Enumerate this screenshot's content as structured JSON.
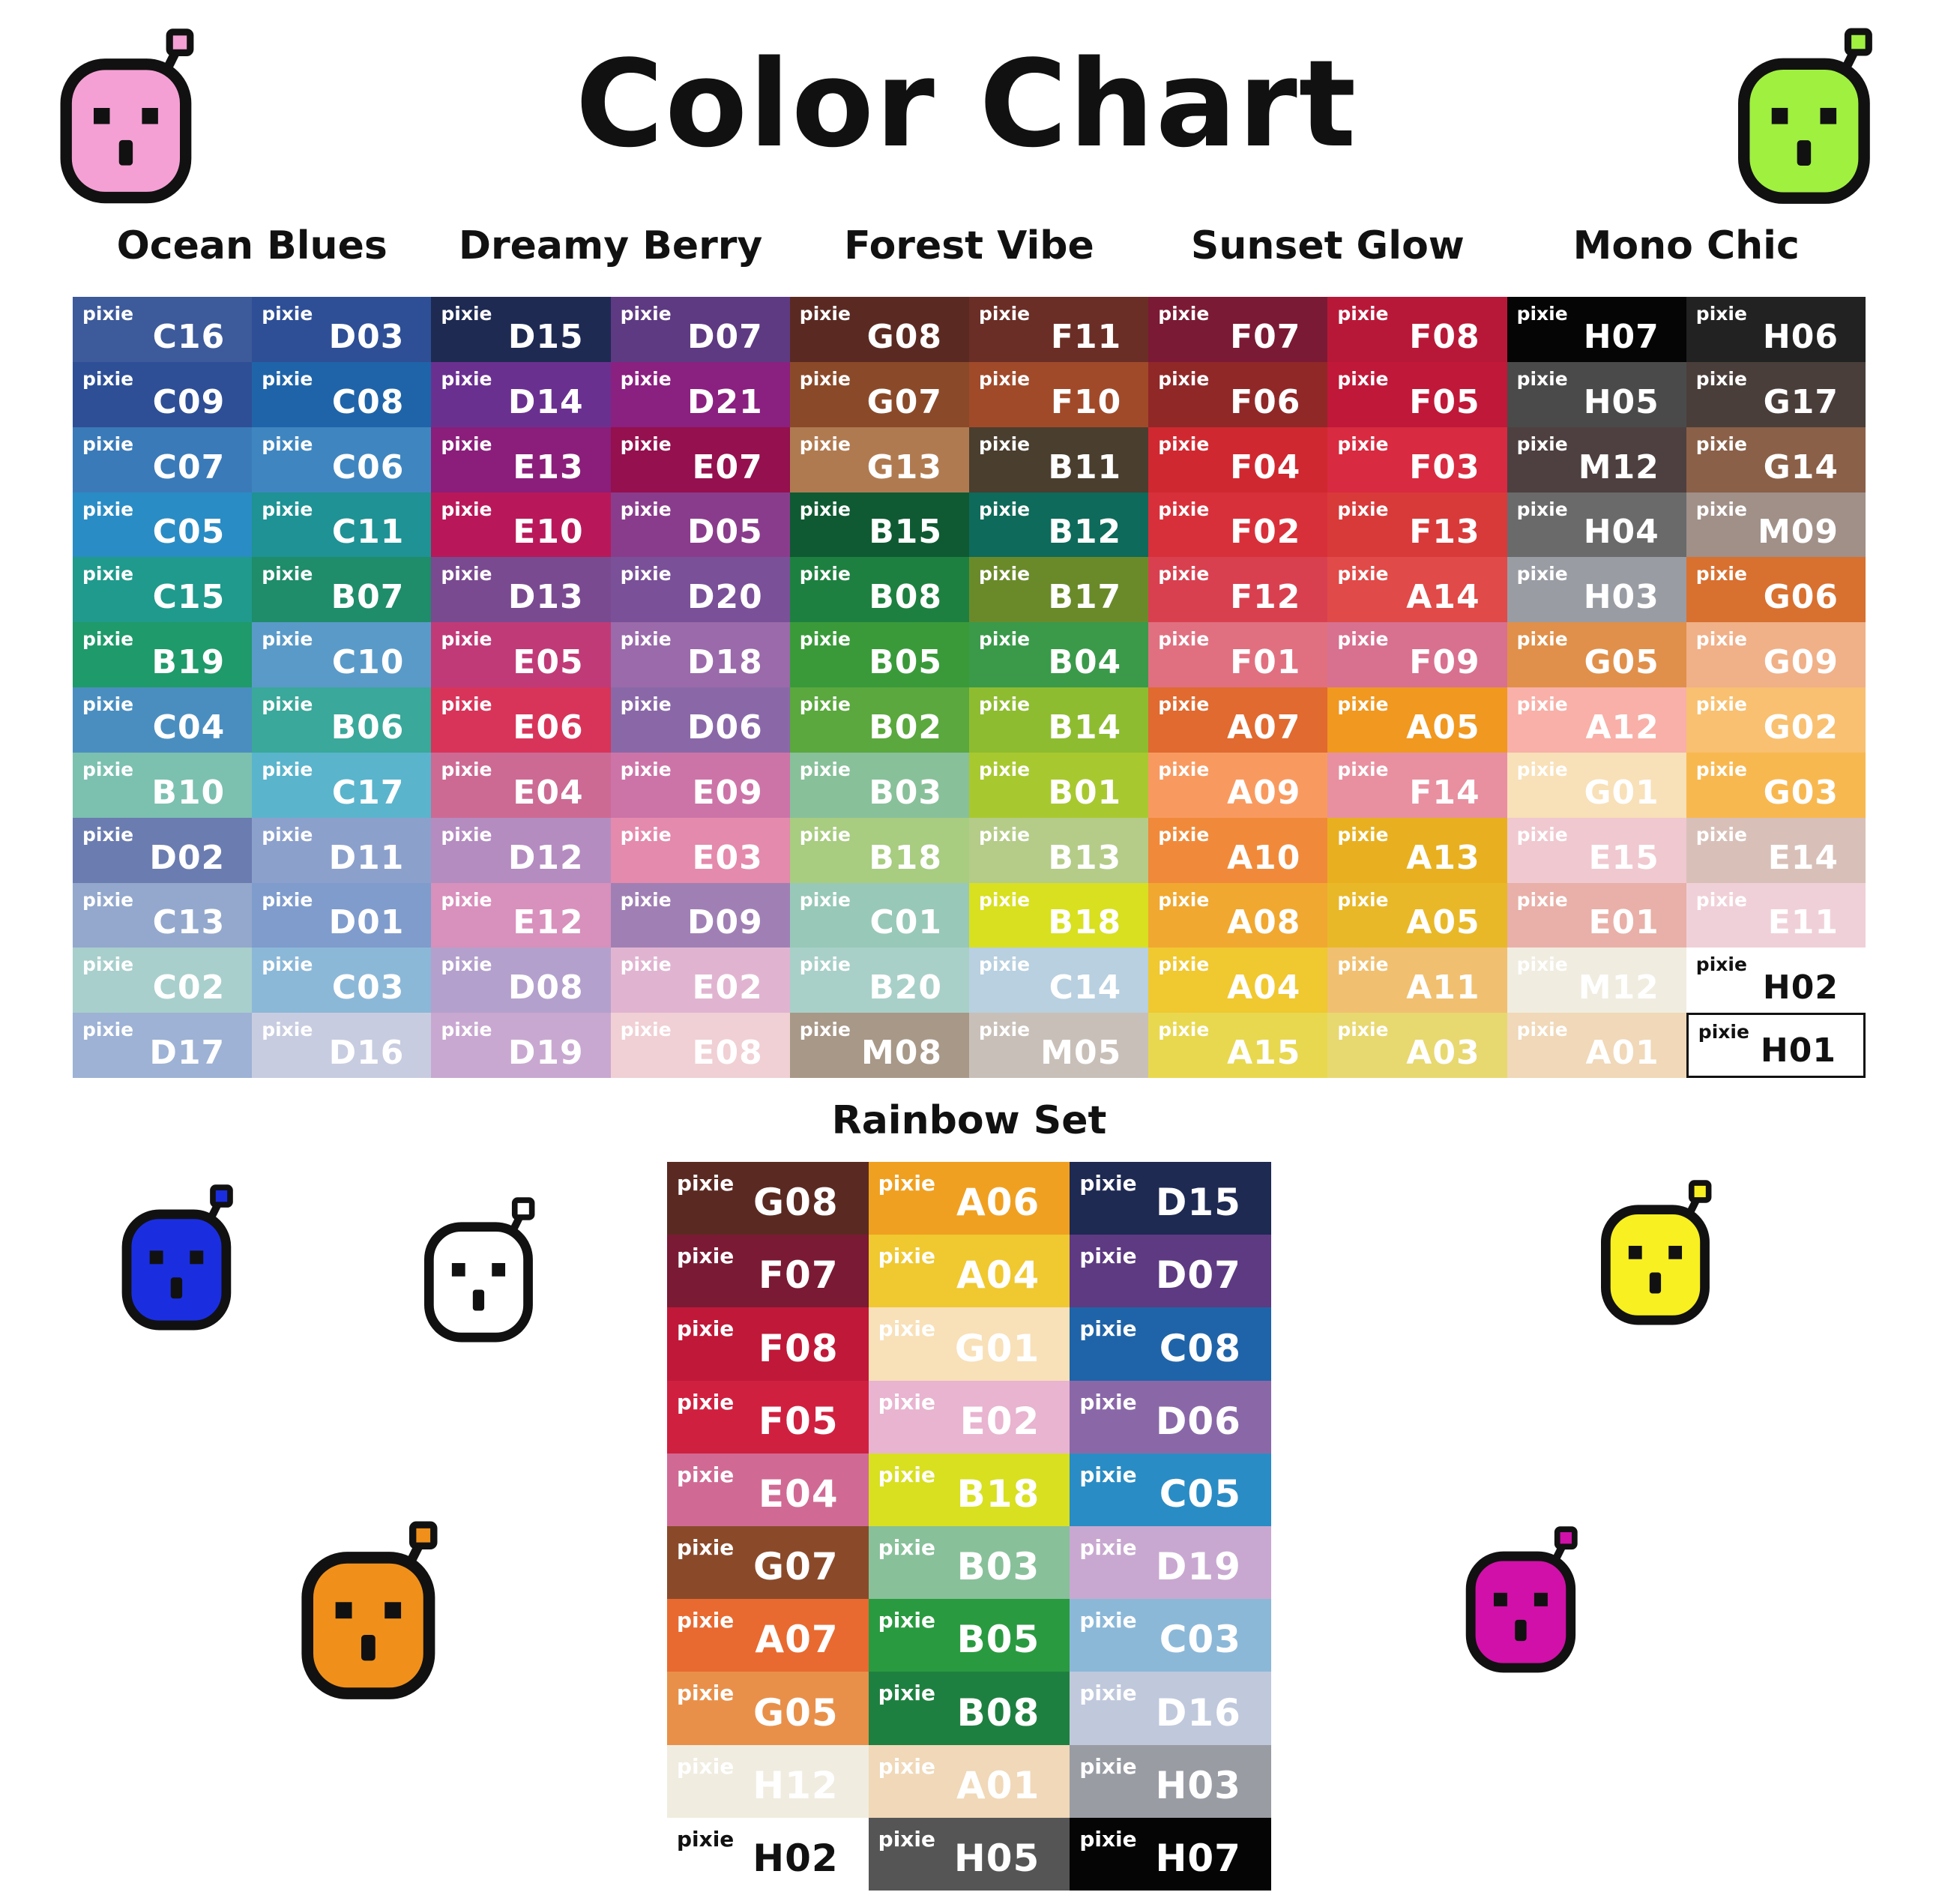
{
  "title": "Color Chart",
  "brand": "pixie",
  "groups": [
    "Ocean Blues",
    "Dreamy Berry",
    "Forest Vibe",
    "Sunset Glow",
    "Mono Chic"
  ],
  "main_columns": [
    [
      [
        "C16",
        "#3d5a9a"
      ],
      [
        "C09",
        "#2e4f96"
      ],
      [
        "C07",
        "#3a7ab8"
      ],
      [
        "C05",
        "#2a8cc4"
      ],
      [
        "C15",
        "#1f9a8c"
      ],
      [
        "B19",
        "#1f9a6a"
      ],
      [
        "C04",
        "#4a8ec0"
      ],
      [
        "B10",
        "#7cc0b0"
      ],
      [
        "D02",
        "#6b7cb0"
      ],
      [
        "C13",
        "#93a8cc"
      ],
      [
        "C02",
        "#a8cfcc"
      ],
      [
        "D17",
        "#9db2d4"
      ]
    ],
    [
      [
        "D03",
        "#2e4f96"
      ],
      [
        "C08",
        "#1f64a8"
      ],
      [
        "C06",
        "#3f86c0"
      ],
      [
        "C11",
        "#1e9294"
      ],
      [
        "B07",
        "#1f8c6a"
      ],
      [
        "C10",
        "#5a9ac8"
      ],
      [
        "B06",
        "#3aa89a"
      ],
      [
        "C17",
        "#5ab4cc"
      ],
      [
        "D11",
        "#8ca0cc"
      ],
      [
        "D01",
        "#7f9ccc"
      ],
      [
        "C03",
        "#8cb8d8"
      ],
      [
        "D16",
        "#c8cce0"
      ]
    ],
    [
      [
        "D15",
        "#1e2a52"
      ],
      [
        "D14",
        "#6a3090"
      ],
      [
        "E13",
        "#8a1e7a"
      ],
      [
        "E10",
        "#b8185a"
      ],
      [
        "D13",
        "#7a4a90"
      ],
      [
        "E05",
        "#c03a78"
      ],
      [
        "E06",
        "#d8345a"
      ],
      [
        "E04",
        "#cc6a94"
      ],
      [
        "D12",
        "#b48cc0"
      ],
      [
        "E12",
        "#d890bc"
      ],
      [
        "D08",
        "#b4a0cc"
      ],
      [
        "D19",
        "#c8a8d0"
      ]
    ],
    [
      [
        "D07",
        "#5e3a82"
      ],
      [
        "D21",
        "#8a2080"
      ],
      [
        "E07",
        "#94104e"
      ],
      [
        "D05",
        "#8a3c8c"
      ],
      [
        "D20",
        "#7a5098"
      ],
      [
        "D18",
        "#9a6aaa"
      ],
      [
        "D06",
        "#8a68a8"
      ],
      [
        "E09",
        "#cc74a8"
      ],
      [
        "E03",
        "#e48aac"
      ],
      [
        "D09",
        "#a080b4"
      ],
      [
        "E02",
        "#e0b4d0"
      ],
      [
        "E08",
        "#f0d0d4"
      ]
    ],
    [
      [
        "G08",
        "#5a2a22"
      ],
      [
        "G07",
        "#8a4a2a"
      ],
      [
        "G13",
        "#b07a50"
      ],
      [
        "B15",
        "#0f5a32"
      ],
      [
        "B08",
        "#1e8040"
      ],
      [
        "B05",
        "#3a9a3a"
      ],
      [
        "B02",
        "#5aa83e"
      ],
      [
        "B03",
        "#88c09a"
      ],
      [
        "B18",
        "#a8cc80"
      ],
      [
        "C01",
        "#98c8b8"
      ],
      [
        "B20",
        "#a8d0c8"
      ],
      [
        "M08",
        "#a89888"
      ]
    ],
    [
      [
        "F11",
        "#6a2e26"
      ],
      [
        "F10",
        "#a04a2a"
      ],
      [
        "B11",
        "#4a3e2e"
      ],
      [
        "B12",
        "#0e6a5a"
      ],
      [
        "B17",
        "#6a8a2a"
      ],
      [
        "B04",
        "#3a9a4a"
      ],
      [
        "B14",
        "#8ebc30"
      ],
      [
        "B01",
        "#a8c830"
      ],
      [
        "B13",
        "#b4cc88"
      ],
      [
        "B18",
        "#d8e020"
      ],
      [
        "C14",
        "#b8d0e0"
      ],
      [
        "M05",
        "#c8c0b8"
      ]
    ],
    [
      [
        "F07",
        "#7a1a34"
      ],
      [
        "F06",
        "#902828"
      ],
      [
        "F04",
        "#d02830"
      ],
      [
        "F02",
        "#d8303a"
      ],
      [
        "F12",
        "#d84050"
      ],
      [
        "F01",
        "#e07080"
      ],
      [
        "A07",
        "#e06a30"
      ],
      [
        "A09",
        "#f89a60"
      ],
      [
        "A10",
        "#f08a3a"
      ],
      [
        "A08",
        "#f0a830"
      ],
      [
        "A04",
        "#f0c830"
      ],
      [
        "A15",
        "#e8d850"
      ]
    ],
    [
      [
        "F08",
        "#b81838"
      ],
      [
        "F05",
        "#c01838"
      ],
      [
        "F03",
        "#d82a40"
      ],
      [
        "F13",
        "#d83a3a"
      ],
      [
        "A14",
        "#e04a48"
      ],
      [
        "F09",
        "#d87090"
      ],
      [
        "A05",
        "#f09820"
      ],
      [
        "F14",
        "#e890a0"
      ],
      [
        "A13",
        "#e8b020"
      ],
      [
        "A05",
        "#e8b828"
      ],
      [
        "A11",
        "#f0c070"
      ],
      [
        "A03",
        "#e8d870"
      ]
    ],
    [
      [
        "H07",
        "#050505"
      ],
      [
        "H05",
        "#4a4a4a"
      ],
      [
        "M12",
        "#4e4040"
      ],
      [
        "H04",
        "#6a6a6a"
      ],
      [
        "H03",
        "#9a9ca4"
      ],
      [
        "G05",
        "#e0904a"
      ],
      [
        "A12",
        "#f8b0a8"
      ],
      [
        "G01",
        "#f8e0b8"
      ],
      [
        "E15",
        "#f0c8d0"
      ],
      [
        "E01",
        "#e8b0a8"
      ],
      [
        "M12",
        "#f0ece0"
      ],
      [
        "A01",
        "#f0d8b8"
      ]
    ],
    [
      [
        "H06",
        "#222222"
      ],
      [
        "G17",
        "#4a3e3a"
      ],
      [
        "G14",
        "#8a6048"
      ],
      [
        "M09",
        "#a09088"
      ],
      [
        "G06",
        "#d87030"
      ],
      [
        "G09",
        "#f0b088"
      ],
      [
        "G02",
        "#f8c070"
      ],
      [
        "G03",
        "#f8b850"
      ],
      [
        "E14",
        "#d8c0b8"
      ],
      [
        "E11",
        "#f0d0d8"
      ],
      [
        "H02",
        "#ffffff",
        "dark"
      ],
      [
        "H01",
        "#ffffff",
        "dark-border"
      ]
    ]
  ],
  "rainbow": {
    "title": "Rainbow Set",
    "cells": [
      [
        "G08",
        "#5a2a22"
      ],
      [
        "A06",
        "#f0a020"
      ],
      [
        "D15",
        "#1e2a52"
      ],
      [
        "F07",
        "#7a1a34"
      ],
      [
        "A04",
        "#f0c830"
      ],
      [
        "D07",
        "#5e3a82"
      ],
      [
        "F08",
        "#c01838"
      ],
      [
        "G01",
        "#f8e0b8"
      ],
      [
        "C08",
        "#1f64a8"
      ],
      [
        "F05",
        "#d02040"
      ],
      [
        "E02",
        "#e8b4d0"
      ],
      [
        "D06",
        "#8a68a8"
      ],
      [
        "E04",
        "#d06a94"
      ],
      [
        "B18",
        "#d8e020"
      ],
      [
        "C05",
        "#2a8cc4"
      ],
      [
        "G07",
        "#8a4a2a"
      ],
      [
        "B03",
        "#88c09a"
      ],
      [
        "D19",
        "#c8a8d0"
      ],
      [
        "A07",
        "#e86a30"
      ],
      [
        "B05",
        "#2a9a40"
      ],
      [
        "C03",
        "#8cb8d8"
      ],
      [
        "G05",
        "#e8904a"
      ],
      [
        "B08",
        "#1e8040"
      ],
      [
        "D16",
        "#c0c8dc"
      ],
      [
        "H12",
        "#f0ece0"
      ],
      [
        "A01",
        "#f0d8b8"
      ],
      [
        "H03",
        "#9a9ca4"
      ],
      [
        "H02",
        "#ffffff",
        "dark"
      ],
      [
        "H05",
        "#555555"
      ],
      [
        "H07",
        "#050505"
      ]
    ]
  },
  "mascots": [
    {
      "name": "pink",
      "color": "#f4a0d4",
      "accent": "#f4a0d4"
    },
    {
      "name": "green",
      "color": "#a0f040",
      "accent": "#a0f040"
    },
    {
      "name": "blue",
      "color": "#1a2ee0",
      "accent": "#1a2ee0"
    },
    {
      "name": "white",
      "color": "#ffffff",
      "accent": "#ffffff"
    },
    {
      "name": "orange",
      "color": "#f0901a",
      "accent": "#f0901a"
    },
    {
      "name": "yellow",
      "color": "#f8f020",
      "accent": "#f8f020"
    },
    {
      "name": "magenta",
      "color": "#d010a8",
      "accent": "#d010a8"
    }
  ]
}
